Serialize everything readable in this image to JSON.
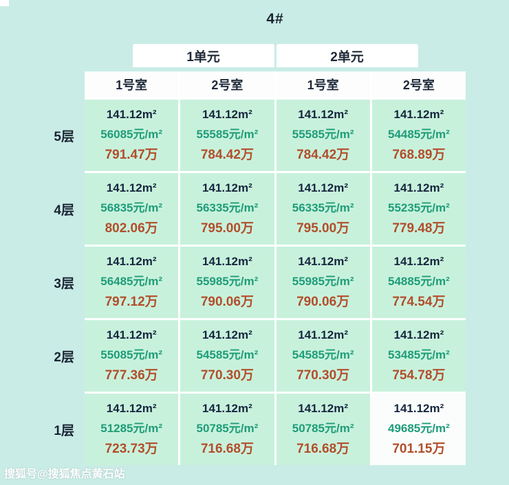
{
  "title": "4#",
  "units": [
    {
      "label": "1单元"
    },
    {
      "label": "2单元"
    }
  ],
  "room_headers": [
    "1号室",
    "2号室",
    "1号室",
    "2号室"
  ],
  "floors": [
    {
      "label": "5层",
      "cells": [
        {
          "area": "141.12m²",
          "unit_price": "56085元/m²",
          "total": "791.47万"
        },
        {
          "area": "141.12m²",
          "unit_price": "55585元/m²",
          "total": "784.42万"
        },
        {
          "area": "141.12m²",
          "unit_price": "55585元/m²",
          "total": "784.42万"
        },
        {
          "area": "141.12m²",
          "unit_price": "54485元/m²",
          "total": "768.89万"
        }
      ]
    },
    {
      "label": "4层",
      "cells": [
        {
          "area": "141.12m²",
          "unit_price": "56835元/m²",
          "total": "802.06万"
        },
        {
          "area": "141.12m²",
          "unit_price": "56335元/m²",
          "total": "795.00万"
        },
        {
          "area": "141.12m²",
          "unit_price": "56335元/m²",
          "total": "795.00万"
        },
        {
          "area": "141.12m²",
          "unit_price": "55235元/m²",
          "total": "779.48万"
        }
      ]
    },
    {
      "label": "3层",
      "cells": [
        {
          "area": "141.12m²",
          "unit_price": "56485元/m²",
          "total": "797.12万"
        },
        {
          "area": "141.12m²",
          "unit_price": "55985元/m²",
          "total": "790.06万"
        },
        {
          "area": "141.12m²",
          "unit_price": "55985元/m²",
          "total": "790.06万"
        },
        {
          "area": "141.12m²",
          "unit_price": "54885元/m²",
          "total": "774.54万"
        }
      ]
    },
    {
      "label": "2层",
      "cells": [
        {
          "area": "141.12m²",
          "unit_price": "55085元/m²",
          "total": "777.36万"
        },
        {
          "area": "141.12m²",
          "unit_price": "54585元/m²",
          "total": "770.30万"
        },
        {
          "area": "141.12m²",
          "unit_price": "54585元/m²",
          "total": "770.30万"
        },
        {
          "area": "141.12m²",
          "unit_price": "53485元/m²",
          "total": "754.78万"
        }
      ]
    },
    {
      "label": "1层",
      "cells": [
        {
          "area": "141.12m²",
          "unit_price": "51285元/m²",
          "total": "723.73万"
        },
        {
          "area": "141.12m²",
          "unit_price": "50785元/m²",
          "total": "716.68万"
        },
        {
          "area": "141.12m²",
          "unit_price": "50785元/m²",
          "total": "716.68万"
        },
        {
          "area": "141.12m²",
          "unit_price": "49685元/m²",
          "total": "701.15万"
        }
      ]
    }
  ],
  "watermark": "搜狐号@搜狐焦点黄石站",
  "colors": {
    "page_bg": "#c9ece6",
    "cell_bg": "#c8f1dc",
    "header_bg": "#fdfdfd",
    "area_text": "#16263e",
    "unit_price_text": "#1e9d79",
    "total_price_text": "#b24e2b"
  },
  "chart_data": {
    "type": "table",
    "title": "4#",
    "column_groups": [
      "1单元",
      "2单元"
    ],
    "columns": [
      "1单元-1号室",
      "1单元-2号室",
      "2单元-1号室",
      "2单元-2号室"
    ],
    "rows": [
      "5层",
      "4层",
      "3层",
      "2层",
      "1层"
    ],
    "area_m2": 141.12,
    "unit_price_yuan_per_m2": [
      [
        56085,
        55585,
        55585,
        54485
      ],
      [
        56835,
        56335,
        56335,
        55235
      ],
      [
        56485,
        55985,
        55985,
        54885
      ],
      [
        55085,
        54585,
        54585,
        53485
      ],
      [
        51285,
        50785,
        50785,
        49685
      ]
    ],
    "total_price_wan": [
      [
        791.47,
        784.42,
        784.42,
        768.89
      ],
      [
        802.06,
        795.0,
        795.0,
        779.48
      ],
      [
        797.12,
        790.06,
        790.06,
        774.54
      ],
      [
        777.36,
        770.3,
        770.3,
        754.78
      ],
      [
        723.73,
        716.68,
        716.68,
        701.15
      ]
    ]
  }
}
